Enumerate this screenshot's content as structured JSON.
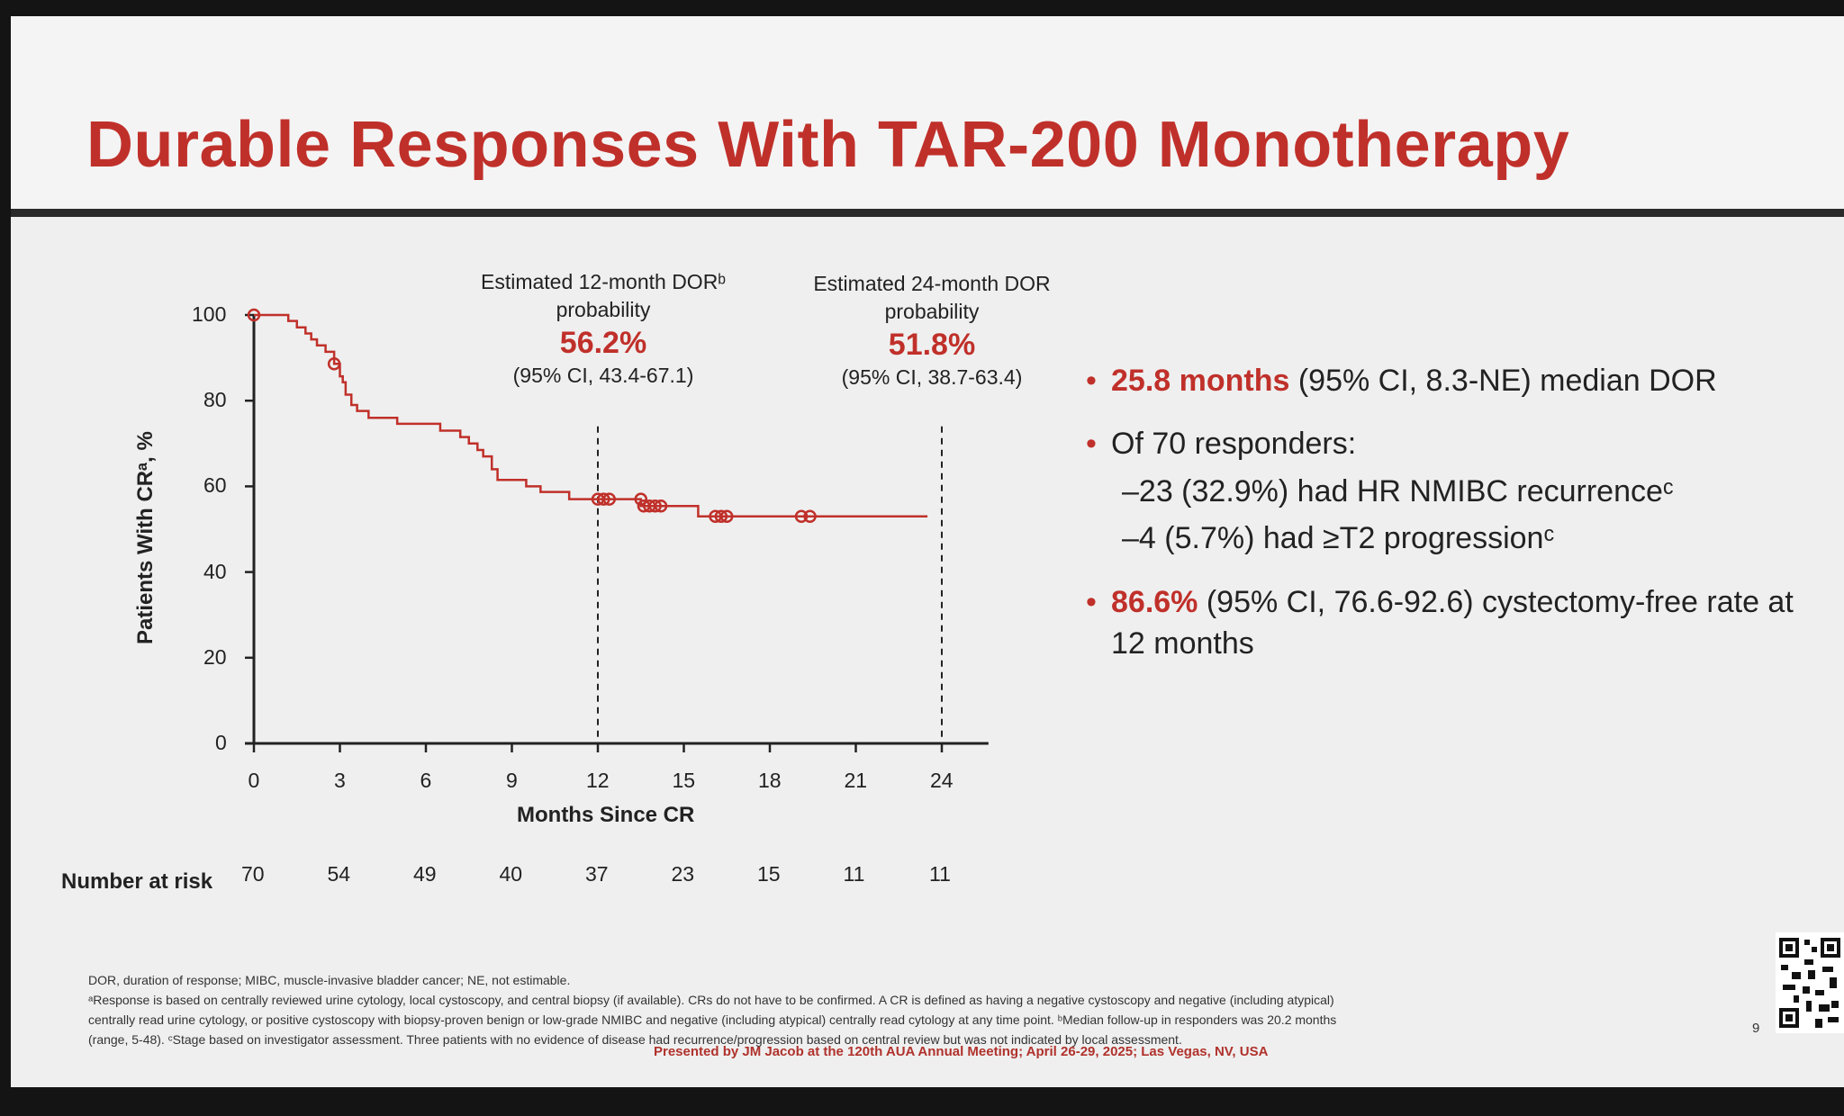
{
  "slide": {
    "title": "Durable Responses With TAR-200 Monotherapy",
    "accent_color": "#c0302a"
  },
  "annotations": {
    "dor12": {
      "line1": "Estimated 12-month DORᵇ",
      "line2": "probability",
      "value": "56.2%",
      "ci": "(95% CI, 43.4-67.1)"
    },
    "dor24": {
      "line1": "Estimated 24-month DOR",
      "line2": "probability",
      "value": "51.8%",
      "ci": "(95% CI, 38.7-63.4)"
    }
  },
  "chart_data": {
    "type": "line",
    "subtype": "kaplan-meier step",
    "ylabel": "Patients With CRᵃ, %",
    "xlabel": "Months Since CR",
    "xlim": [
      0,
      25
    ],
    "ylim": [
      0,
      100
    ],
    "xticks": [
      0,
      3,
      6,
      9,
      12,
      15,
      18,
      21,
      24
    ],
    "yticks": [
      0,
      20,
      40,
      60,
      80,
      100
    ],
    "series": [
      {
        "x": [
          0,
          1.2,
          1.5,
          1.8,
          2.0,
          2.2,
          2.5,
          2.8,
          3.0,
          3.1,
          3.2,
          3.4,
          3.6,
          4.0,
          5.0,
          6.5,
          7.2,
          7.5,
          7.8,
          8.0,
          8.3,
          8.5,
          9.5,
          10.0,
          10.5,
          11.0,
          12.0,
          13.5,
          14.0,
          15.5,
          16.0,
          20.0,
          23.5
        ],
        "y": [
          100,
          98.6,
          97.1,
          95.7,
          94.3,
          92.9,
          91.4,
          88.6,
          85.7,
          84.3,
          81.4,
          79.0,
          77.6,
          76.0,
          74.6,
          73.0,
          71.5,
          70.0,
          68.5,
          67.0,
          64.0,
          61.5,
          60.0,
          58.7,
          58.7,
          57.0,
          57.0,
          55.4,
          55.4,
          53.0,
          53.0,
          53.0,
          53.0
        ]
      }
    ],
    "censored": [
      {
        "x": 0,
        "y": 100
      },
      {
        "x": 2.8,
        "y": 88.6
      },
      {
        "x": 12.0,
        "y": 57.0
      },
      {
        "x": 12.2,
        "y": 57.0
      },
      {
        "x": 12.4,
        "y": 57.0
      },
      {
        "x": 13.5,
        "y": 57.0
      },
      {
        "x": 13.6,
        "y": 55.4
      },
      {
        "x": 13.8,
        "y": 55.4
      },
      {
        "x": 14.0,
        "y": 55.4
      },
      {
        "x": 14.2,
        "y": 55.4
      },
      {
        "x": 16.1,
        "y": 53.0
      },
      {
        "x": 16.3,
        "y": 53.0
      },
      {
        "x": 16.5,
        "y": 53.0
      },
      {
        "x": 19.1,
        "y": 53.0
      },
      {
        "x": 19.4,
        "y": 53.0
      }
    ],
    "vlines": [
      12,
      24
    ],
    "risk_table": {
      "label": "Number at risk",
      "values": [
        "70",
        "54",
        "49",
        "40",
        "37",
        "23",
        "15",
        "11",
        "11"
      ]
    },
    "line_color": "#c0302a"
  },
  "bullets": {
    "b1_hl": "25.8 months",
    "b1_rest": " (95% CI, 8.3-NE) median DOR",
    "b2": "Of 70 responders:",
    "s1": "–23 (32.9%) had HR NMIBC recurrenceᶜ",
    "s2": "–4 (5.7%) had ≥T2 progressionᶜ",
    "b3_hl": "86.6%",
    "b3_rest": " (95% CI, 76.6-92.6) cystectomy-free rate at 12 months"
  },
  "footnotes": {
    "l1": "DOR, duration of response; MIBC, muscle-invasive bladder cancer; NE, not estimable.",
    "l2": "ᵃResponse is based on centrally reviewed urine cytology, local cystoscopy, and central biopsy (if available). CRs do not have to be confirmed. A CR is defined as having a negative cystoscopy and negative (including atypical)",
    "l3": "centrally read urine cytology, or positive cystoscopy with biopsy-proven benign or low-grade NMIBC and negative (including atypical) centrally read cytology at any time point. ᵇMedian follow-up in responders was 20.2 months",
    "l4": "(range, 5-48). ᶜStage based on investigator assessment. Three patients with no evidence of disease had recurrence/progression based on central review but was not indicated by local assessment.",
    "presented": "Presented by JM Jacob at the 120th AUA Annual Meeting; April 26-29, 2025; Las Vegas, NV, USA",
    "page": "9"
  }
}
